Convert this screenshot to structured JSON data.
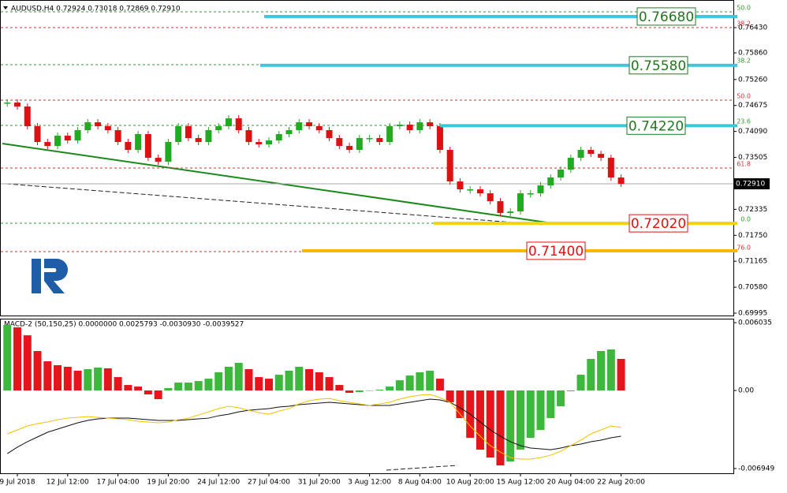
{
  "chart_data": [
    {
      "type": "candlestick",
      "title": "AUDUSD,H4  0.72924 0.73018 0.72869 0.72910",
      "categories": [
        null,
        "9 Jul 2018",
        null,
        null,
        null,
        null,
        "12 Jul 12:00",
        null,
        null,
        null,
        null,
        "17 Jul 04:00",
        null,
        null,
        null,
        null,
        "19 Jul 20:00",
        null,
        null,
        null,
        null,
        "24 Jul 12:00",
        null,
        null,
        null,
        null,
        "27 Jul 04:00",
        null,
        null,
        null,
        null,
        "31 Jul 20:00",
        null,
        null,
        null,
        null,
        "3 Aug 12:00",
        null,
        null,
        null,
        null,
        "8 Aug 04:00",
        null,
        null,
        null,
        null,
        "10 Aug 20:00",
        null,
        null,
        null,
        null,
        "15 Aug 12:00",
        null,
        null,
        null,
        null,
        "20 Aug 04:00",
        null,
        null,
        null,
        null,
        "22 Aug 20:00"
      ],
      "values": [
        0.74741,
        0.74652,
        0.74208,
        0.73852,
        0.73763,
        0.73994,
        0.73887,
        0.74119,
        0.74296,
        0.74208,
        0.74119,
        0.73852,
        0.73674,
        0.7403,
        0.73496,
        0.73407,
        0.73852,
        0.74208,
        0.73941,
        0.73852,
        0.74119,
        0.74208,
        0.74385,
        0.74119,
        0.73852,
        0.73799,
        0.73887,
        0.7403,
        0.74119,
        0.74296,
        0.74208,
        0.74119,
        0.73941,
        0.73763,
        0.73674,
        0.73941,
        0.73941,
        0.73852,
        0.74208,
        0.74243,
        0.74119,
        0.74296,
        0.74208,
        0.73674,
        0.72963,
        0.72785,
        0.72785,
        0.72696,
        0.72518,
        0.72252,
        0.72287,
        0.72696,
        0.72696,
        0.72874,
        0.73052,
        0.7323,
        0.73496,
        0.73674,
        0.73585,
        0.73496,
        0.73052,
        0.7291
      ],
      "up_color": "#22aa22",
      "down_color": "#dd1111",
      "ylim": [
        0.69942,
        0.76963
      ],
      "yticks": [
        {
          "value": 0.7643,
          "label": "0.76430"
        },
        {
          "value": 0.7586,
          "label": "0.75860"
        },
        {
          "value": 0.7526,
          "label": "0.75260"
        },
        0.74675,
        {
          "value": 0.7409,
          "label": "0.74090"
        },
        0.73505,
        0.72335,
        {
          "value": 0.7175,
          "label": "0.71750"
        },
        0.71165,
        {
          "value": 0.7058,
          "label": "0.70580"
        },
        0.69995
      ],
      "last_price": {
        "value": 0.7291,
        "label": "0.72910"
      },
      "fib_lines": [
        {
          "level": "50.0",
          "price": 0.76786,
          "color": "#2a9d2a"
        },
        {
          "level": "38.2",
          "price": 0.7643,
          "color": "#d33333"
        },
        {
          "level": "38.2",
          "price": 0.75594,
          "color": "#2a9d2a"
        },
        {
          "level": "50.0",
          "price": 0.74794,
          "color": "#d33333"
        },
        {
          "level": "23.6",
          "price": 0.74225,
          "color": "#2a9d2a"
        },
        {
          "level": "61.8",
          "price": 0.73265,
          "color": "#d33333"
        },
        {
          "level": "0.0",
          "price": 0.72021,
          "color": "#2a9d2a"
        },
        {
          "level": "76.0",
          "price": 0.71381,
          "color": "#d33333"
        }
      ],
      "levels": [
        {
          "value": 0.7668,
          "label": "0.76680",
          "color": "#3ec6e0",
          "text_color": "#1d7a1d"
        },
        {
          "value": 0.7558,
          "label": "0.75580",
          "color": "#3ec6e0",
          "text_color": "#1d7a1d"
        },
        {
          "value": 0.7422,
          "label": "0.74220",
          "color": "#3ec6e0",
          "text_color": "#1d7a1d"
        },
        {
          "value": 0.7202,
          "label": "0.72020",
          "color": "#f2d21b",
          "text_color": "#e01010"
        },
        {
          "value": 0.714,
          "label": "0.71400",
          "color": "#f5b800",
          "text_color": "#e01010"
        }
      ]
    },
    {
      "type": "macd",
      "title": "MACD-2 (50,150,25) 0.0000000 0.0025793 -0.0030930 -0.0039527",
      "histogram": [
        0.00583,
        0.00562,
        0.00491,
        0.00351,
        0.0026,
        0.00225,
        0.00211,
        0.00176,
        0.0019,
        0.00204,
        0.00197,
        0.00119,
        0.00049,
        0.00035,
        -0.00035,
        -0.00077,
        0.00021,
        0.0007,
        0.0007,
        0.00084,
        0.00105,
        0.00162,
        0.00211,
        0.00246,
        0.0019,
        0.00119,
        0.00105,
        0.0014,
        0.00176,
        0.00211,
        0.0019,
        0.00162,
        0.00119,
        0.00049,
        -0.00021,
        -0.00014,
        0,
        7e-05,
        0.00035,
        0.00091,
        0.00133,
        0.00162,
        0.00176,
        0.00105,
        -0.00105,
        -0.00246,
        -0.00421,
        -0.00527,
        -0.00597,
        -0.00667,
        -0.00632,
        -0.00527,
        -0.00421,
        -0.00351,
        -0.00246,
        -0.0014,
        -7e-05,
        0.0014,
        0.00281,
        0.00351,
        0.00365,
        0.00281
      ],
      "up_color": "#3cb83c",
      "down_color": "#e8141b",
      "lines": [
        {
          "color": "#111111",
          "values": [
            -0.00562,
            -0.00505,
            -0.00456,
            -0.00414,
            -0.00372,
            -0.00344,
            -0.00316,
            -0.00288,
            -0.00267,
            -0.00253,
            -0.00246,
            -0.00246,
            -0.00246,
            -0.00253,
            -0.0026,
            -0.00267,
            -0.00267,
            -0.00267,
            -0.0026,
            -0.00253,
            -0.00246,
            -0.00225,
            -0.00211,
            -0.0019,
            -0.00176,
            -0.00168,
            -0.00161,
            -0.00147,
            -0.0014,
            -0.00126,
            -0.00119,
            -0.00112,
            -0.00105,
            -0.00112,
            -0.00119,
            -0.00126,
            -0.00133,
            -0.00133,
            -0.00133,
            -0.00119,
            -0.00105,
            -0.00091,
            -0.00077,
            -0.00084,
            -0.00105,
            -0.00154,
            -0.00211,
            -0.00281,
            -0.00351,
            -0.00407,
            -0.00456,
            -0.00491,
            -0.00512,
            -0.00519,
            -0.00527,
            -0.00512,
            -0.00491,
            -0.00477,
            -0.00456,
            -0.00442,
            -0.00421,
            -0.00407
          ]
        },
        {
          "color": "#f2c200",
          "values": [
            -0.00386,
            -0.00351,
            -0.00316,
            -0.00295,
            -0.00281,
            -0.0026,
            -0.00246,
            -0.00239,
            -0.00232,
            -0.00239,
            -0.00246,
            -0.00253,
            -0.0026,
            -0.00274,
            -0.00281,
            -0.00288,
            -0.00281,
            -0.0026,
            -0.00246,
            -0.00218,
            -0.0019,
            -0.00161,
            -0.0014,
            -0.00154,
            -0.00176,
            -0.00197,
            -0.00211,
            -0.00183,
            -0.00161,
            -0.00119,
            -0.00091,
            -0.00077,
            -0.0007,
            -0.00091,
            -0.00105,
            -0.00119,
            -0.00133,
            -0.00119,
            -0.00105,
            -0.00077,
            -0.00056,
            -0.00042,
            -0.00035,
            -0.00063,
            -0.00105,
            -0.00211,
            -0.00316,
            -0.00407,
            -0.00491,
            -0.00548,
            -0.00597,
            -0.00611,
            -0.00611,
            -0.00597,
            -0.00576,
            -0.00541,
            -0.00491,
            -0.00442,
            -0.00386,
            -0.00351,
            -0.00316,
            -0.0033
          ]
        }
      ],
      "ylim": [
        -0.00737,
        0.00632
      ],
      "yticks": [
        0.006035,
        {
          "value": 0,
          "label": "0.00"
        },
        -0.006949
      ]
    }
  ]
}
